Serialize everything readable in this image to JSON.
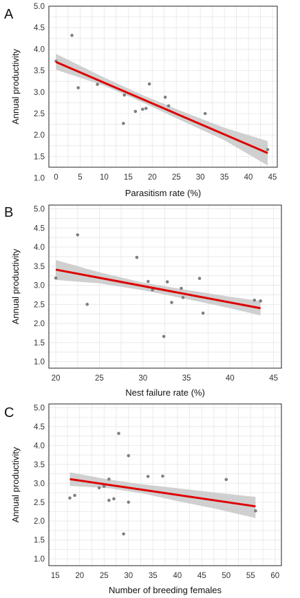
{
  "chart_data": [
    {
      "type": "scatter",
      "panel_label": "A",
      "xlabel": "Parasitism rate (%)",
      "ylabel": "Annual productivity",
      "xlim": [
        -1.5,
        46
      ],
      "ylim": [
        1.25,
        5.0
      ],
      "x_ticks": [
        0,
        5,
        10,
        15,
        20,
        25,
        30,
        35,
        40,
        45
      ],
      "y_ticks": [
        1.0,
        1.5,
        2.0,
        2.5,
        3.0,
        3.5,
        4.0,
        4.5,
        5.0
      ],
      "grid": true,
      "points": [
        {
          "x": 0,
          "y": 3.72
        },
        {
          "x": 3.3,
          "y": 4.32
        },
        {
          "x": 4.6,
          "y": 3.1
        },
        {
          "x": 8.6,
          "y": 3.18
        },
        {
          "x": 14.0,
          "y": 2.27
        },
        {
          "x": 14.2,
          "y": 2.93
        },
        {
          "x": 16.5,
          "y": 2.55
        },
        {
          "x": 18.0,
          "y": 2.6
        },
        {
          "x": 18.7,
          "y": 2.62
        },
        {
          "x": 19.4,
          "y": 3.19
        },
        {
          "x": 22.7,
          "y": 2.88
        },
        {
          "x": 23.4,
          "y": 2.68
        },
        {
          "x": 31.0,
          "y": 2.5
        },
        {
          "x": 44.0,
          "y": 1.66
        }
      ],
      "fit": {
        "x": [
          0,
          44
        ],
        "y": [
          3.7,
          1.58
        ]
      },
      "ci": [
        {
          "x": 0,
          "lo": 3.52,
          "hi": 3.89
        },
        {
          "x": 10,
          "lo": 3.15,
          "hi": 3.34
        },
        {
          "x": 18,
          "lo": 2.76,
          "hi": 2.93
        },
        {
          "x": 26,
          "lo": 2.34,
          "hi": 2.56
        },
        {
          "x": 35,
          "lo": 1.88,
          "hi": 2.17
        },
        {
          "x": 44,
          "lo": 1.29,
          "hi": 1.86
        }
      ]
    },
    {
      "type": "scatter",
      "panel_label": "B",
      "xlabel": "Nest failure rate (%)",
      "ylabel": "Annual productivity",
      "xlim": [
        19.2,
        45.9
      ],
      "ylim": [
        0.83,
        5.1
      ],
      "x_ticks": [
        20,
        25,
        30,
        35,
        40,
        45
      ],
      "y_ticks": [
        1.0,
        1.5,
        2.0,
        2.5,
        3.0,
        3.5,
        4.0,
        4.5,
        5.0
      ],
      "grid": true,
      "points": [
        {
          "x": 20.0,
          "y": 3.19
        },
        {
          "x": 22.5,
          "y": 4.32
        },
        {
          "x": 23.6,
          "y": 2.5
        },
        {
          "x": 29.3,
          "y": 3.73
        },
        {
          "x": 30.6,
          "y": 3.1
        },
        {
          "x": 31.1,
          "y": 2.88
        },
        {
          "x": 32.4,
          "y": 1.66
        },
        {
          "x": 32.8,
          "y": 3.09
        },
        {
          "x": 33.3,
          "y": 2.55
        },
        {
          "x": 34.4,
          "y": 2.92
        },
        {
          "x": 34.6,
          "y": 2.68
        },
        {
          "x": 36.5,
          "y": 3.18
        },
        {
          "x": 36.9,
          "y": 2.27
        },
        {
          "x": 42.8,
          "y": 2.61
        },
        {
          "x": 43.5,
          "y": 2.59
        }
      ],
      "fit": {
        "x": [
          20,
          43.5
        ],
        "y": [
          3.41,
          2.4
        ]
      },
      "ci": [
        {
          "x": 20,
          "lo": 3.14,
          "hi": 3.66
        },
        {
          "x": 25,
          "lo": 3.05,
          "hi": 3.34
        },
        {
          "x": 30,
          "lo": 2.87,
          "hi": 3.07
        },
        {
          "x": 35,
          "lo": 2.64,
          "hi": 2.88
        },
        {
          "x": 40,
          "lo": 2.4,
          "hi": 2.7
        },
        {
          "x": 43.5,
          "lo": 2.21,
          "hi": 2.59
        }
      ]
    },
    {
      "type": "scatter",
      "panel_label": "C",
      "xlabel": "Number of breeding females",
      "ylabel": "Annual productivity",
      "xlim": [
        13.7,
        61.3
      ],
      "ylim": [
        0.82,
        5.1
      ],
      "x_ticks": [
        15,
        20,
        25,
        30,
        35,
        40,
        45,
        50,
        55,
        60
      ],
      "y_ticks": [
        1.0,
        1.5,
        2.0,
        2.5,
        3.0,
        3.5,
        4.0,
        4.5,
        5.0
      ],
      "grid": true,
      "points": [
        {
          "x": 18.0,
          "y": 2.61
        },
        {
          "x": 19.0,
          "y": 2.68
        },
        {
          "x": 24.0,
          "y": 2.88
        },
        {
          "x": 25.0,
          "y": 2.92
        },
        {
          "x": 26.0,
          "y": 3.11
        },
        {
          "x": 26.0,
          "y": 2.55
        },
        {
          "x": 27.0,
          "y": 2.59
        },
        {
          "x": 28.0,
          "y": 4.32
        },
        {
          "x": 29.0,
          "y": 1.66
        },
        {
          "x": 30.0,
          "y": 3.73
        },
        {
          "x": 30.0,
          "y": 2.5
        },
        {
          "x": 34.0,
          "y": 3.18
        },
        {
          "x": 37.0,
          "y": 3.19
        },
        {
          "x": 50.0,
          "y": 3.1
        },
        {
          "x": 56.0,
          "y": 2.27
        }
      ],
      "fit": {
        "x": [
          18,
          56
        ],
        "y": [
          3.11,
          2.39
        ]
      },
      "ci": [
        {
          "x": 18,
          "lo": 2.93,
          "hi": 3.29
        },
        {
          "x": 26,
          "lo": 2.87,
          "hi": 3.1
        },
        {
          "x": 33,
          "lo": 2.73,
          "hi": 2.97
        },
        {
          "x": 40,
          "lo": 2.53,
          "hi": 2.87
        },
        {
          "x": 48,
          "lo": 2.32,
          "hi": 2.75
        },
        {
          "x": 56,
          "lo": 2.08,
          "hi": 2.64
        }
      ]
    }
  ],
  "colors": {
    "fit_line": "#dd0000",
    "ci_band": "#c8c8c8",
    "point": "#7f7f7f",
    "grid": "#e6e6e6",
    "panel_border": "#222222"
  }
}
